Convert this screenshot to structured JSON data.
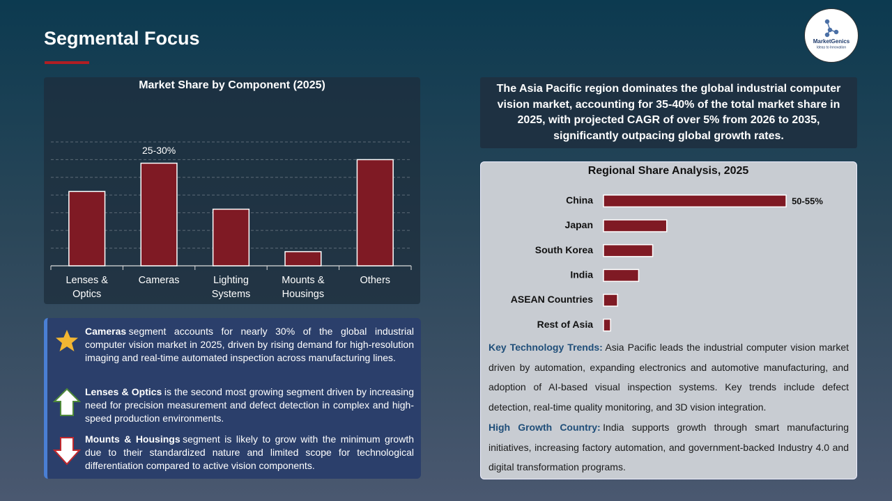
{
  "title": "Segmental Focus",
  "logo": {
    "name": "MarketGenics",
    "tagline": "Ideas to Innovation"
  },
  "chart_data": [
    {
      "type": "bar",
      "title": "Market Share by Component (2025)",
      "categories": [
        "Lenses & Optics",
        "Cameras",
        "Lighting Systems",
        "Mounts & Housings",
        "Others"
      ],
      "values": [
        21,
        29,
        16,
        4,
        30
      ],
      "value_labels": [
        null,
        "25-30%",
        null,
        null,
        null
      ],
      "color": "#7f1a24",
      "ylim": [
        0,
        35
      ],
      "yticks": [
        0,
        5,
        10,
        15,
        20,
        25,
        30,
        35
      ],
      "grid": true
    },
    {
      "type": "hbar",
      "title": "Regional Share Analysis, 2025",
      "categories": [
        "China",
        "Japan",
        "South Korea",
        "India",
        "ASEAN Countries",
        "Rest of Asia"
      ],
      "values": [
        52,
        18,
        14,
        10,
        4,
        2
      ],
      "value_labels": [
        "50-55%",
        null,
        null,
        null,
        null,
        null
      ],
      "color": "#7f1a24",
      "xlim": [
        0,
        70
      ]
    }
  ],
  "summary": "The Asia Pacific region dominates the global industrial computer vision market, accounting for 35-40% of the total market share in 2025, with projected CAGR of over 5% from 2026 to 2035, significantly outpacing global growth rates.",
  "bullets": [
    {
      "lead": "Cameras",
      "text": "segment accounts for nearly 30% of the global industrial computer vision market in 2025, driven by rising demand for high-resolution imaging and real-time automated inspection across manufacturing lines."
    },
    {
      "lead": "Lenses & Optics",
      "text": "is the second most growing segment driven by increasing need for precision measurement and defect detection in complex and high-speed production environments."
    },
    {
      "lead": "Mounts & Housings",
      "text": "segment is likely to grow with the minimum growth due to their standardized nature and limited scope for technological differentiation compared to active vision components."
    }
  ],
  "notes": [
    {
      "lead": "Key Technology Trends:",
      "text": "Asia Pacific leads the industrial computer vision market driven by automation, expanding electronics and automotive manufacturing, and adoption of AI-based visual inspection systems. Key trends include defect detection, real-time quality monitoring, and 3D vision integration."
    },
    {
      "lead": "High Growth Country:",
      "text": "India supports growth through smart manufacturing initiatives, increasing factory automation, and government-backed Industry 4.0 and digital transformation programs."
    }
  ]
}
